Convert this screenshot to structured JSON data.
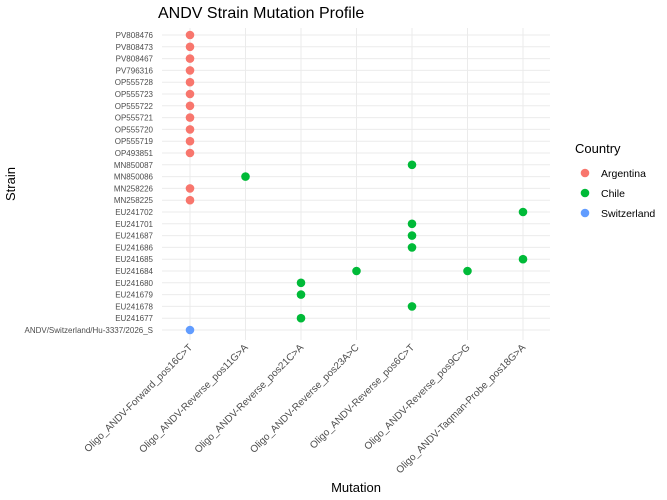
{
  "chart_data": {
    "type": "scatter",
    "title": "ANDV Strain Mutation Profile",
    "xlabel": "Mutation",
    "ylabel": "Strain",
    "grid": true,
    "legend_position": "right",
    "legend_title": "Country",
    "x_categories": [
      "Oligo_ANDV-Forward_pos16C>T",
      "Oligo_ANDV-Reverse_pos11G>A",
      "Oligo_ANDV-Reverse_pos21C>A",
      "Oligo_ANDV-Reverse_pos23A>C",
      "Oligo_ANDV-Reverse_pos6C>T",
      "Oligo_ANDV-Reverse_pos9C>G",
      "Oligo_ANDV-Taqman-Probe_pos18G>A"
    ],
    "y_categories": [
      "PV808476",
      "PV808473",
      "PV808467",
      "PV796316",
      "OP555728",
      "OP555723",
      "OP555722",
      "OP555721",
      "OP555720",
      "OP555719",
      "OP493851",
      "MN850087",
      "MN850086",
      "MN258226",
      "MN258225",
      "EU241702",
      "EU241701",
      "EU241687",
      "EU241686",
      "EU241685",
      "EU241684",
      "EU241680",
      "EU241679",
      "EU241678",
      "EU241677",
      "ANDV/Switzerland/Hu-3337/2026_S"
    ],
    "series": [
      {
        "name": "Argentina",
        "color": "#F8766D",
        "points": [
          {
            "strain": "PV808476",
            "mutation": "Oligo_ANDV-Forward_pos16C>T"
          },
          {
            "strain": "PV808473",
            "mutation": "Oligo_ANDV-Forward_pos16C>T"
          },
          {
            "strain": "PV808467",
            "mutation": "Oligo_ANDV-Forward_pos16C>T"
          },
          {
            "strain": "PV796316",
            "mutation": "Oligo_ANDV-Forward_pos16C>T"
          },
          {
            "strain": "OP555728",
            "mutation": "Oligo_ANDV-Forward_pos16C>T"
          },
          {
            "strain": "OP555723",
            "mutation": "Oligo_ANDV-Forward_pos16C>T"
          },
          {
            "strain": "OP555722",
            "mutation": "Oligo_ANDV-Forward_pos16C>T"
          },
          {
            "strain": "OP555721",
            "mutation": "Oligo_ANDV-Forward_pos16C>T"
          },
          {
            "strain": "OP555720",
            "mutation": "Oligo_ANDV-Forward_pos16C>T"
          },
          {
            "strain": "OP555719",
            "mutation": "Oligo_ANDV-Forward_pos16C>T"
          },
          {
            "strain": "OP493851",
            "mutation": "Oligo_ANDV-Forward_pos16C>T"
          },
          {
            "strain": "MN258226",
            "mutation": "Oligo_ANDV-Forward_pos16C>T"
          },
          {
            "strain": "MN258225",
            "mutation": "Oligo_ANDV-Forward_pos16C>T"
          }
        ]
      },
      {
        "name": "Chile",
        "color": "#00BA38",
        "points": [
          {
            "strain": "MN850087",
            "mutation": "Oligo_ANDV-Reverse_pos6C>T"
          },
          {
            "strain": "MN850086",
            "mutation": "Oligo_ANDV-Reverse_pos11G>A"
          },
          {
            "strain": "EU241702",
            "mutation": "Oligo_ANDV-Taqman-Probe_pos18G>A"
          },
          {
            "strain": "EU241701",
            "mutation": "Oligo_ANDV-Reverse_pos6C>T"
          },
          {
            "strain": "EU241687",
            "mutation": "Oligo_ANDV-Reverse_pos6C>T"
          },
          {
            "strain": "EU241686",
            "mutation": "Oligo_ANDV-Reverse_pos6C>T"
          },
          {
            "strain": "EU241685",
            "mutation": "Oligo_ANDV-Taqman-Probe_pos18G>A"
          },
          {
            "strain": "EU241684",
            "mutation": "Oligo_ANDV-Reverse_pos23A>C"
          },
          {
            "strain": "EU241684",
            "mutation": "Oligo_ANDV-Reverse_pos9C>G"
          },
          {
            "strain": "EU241680",
            "mutation": "Oligo_ANDV-Reverse_pos21C>A"
          },
          {
            "strain": "EU241679",
            "mutation": "Oligo_ANDV-Reverse_pos21C>A"
          },
          {
            "strain": "EU241678",
            "mutation": "Oligo_ANDV-Reverse_pos6C>T"
          },
          {
            "strain": "EU241677",
            "mutation": "Oligo_ANDV-Reverse_pos21C>A"
          }
        ]
      },
      {
        "name": "Switzerland",
        "color": "#619CFF",
        "points": [
          {
            "strain": "ANDV/Switzerland/Hu-3337/2026_S",
            "mutation": "Oligo_ANDV-Forward_pos16C>T"
          }
        ]
      }
    ]
  }
}
